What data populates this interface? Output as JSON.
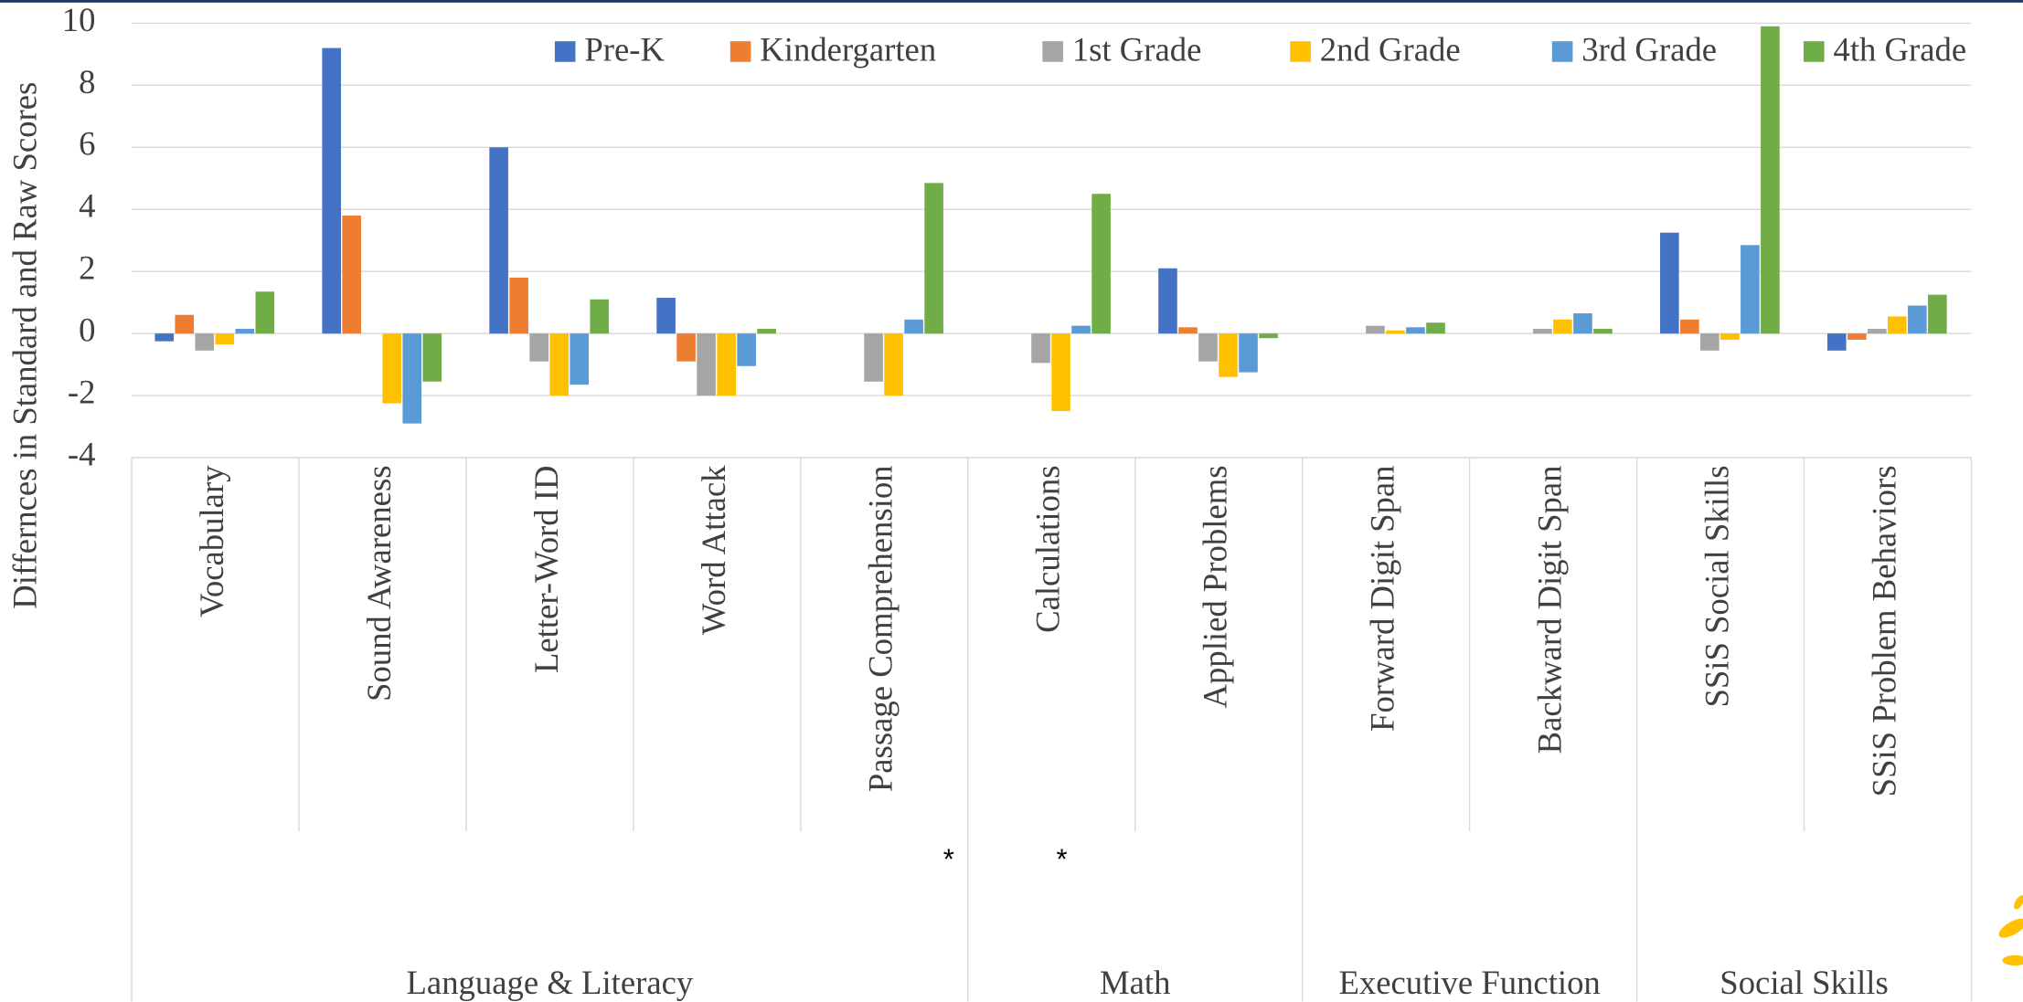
{
  "chart_data": {
    "type": "bar",
    "ylabel": "Differnces in Standard and Raw Scores",
    "categories": [
      "Vocabulary",
      "Sound Awareness",
      "Letter-Word ID",
      "Word Attack",
      "Passage Comprehension",
      "Calculations",
      "Applied Problems",
      "Forward Digit Span",
      "Backward Digit Span",
      "SSiS Social Skills",
      "SSiS Problem Behaviors"
    ],
    "category_notes": [
      null,
      null,
      null,
      null,
      "*",
      "*",
      null,
      null,
      null,
      null,
      null
    ],
    "groups": [
      {
        "label": "Language & Literacy",
        "span": 5
      },
      {
        "label": "Math",
        "span": 2
      },
      {
        "label": "Executive Function",
        "span": 2
      },
      {
        "label": "Social Skills",
        "span": 2
      }
    ],
    "series": [
      {
        "name": "Pre-K",
        "color": "#4472c4",
        "values": [
          -0.25,
          9.2,
          6.0,
          1.15,
          null,
          null,
          2.1,
          null,
          null,
          3.25,
          -0.55
        ]
      },
      {
        "name": "Kindergarten",
        "color": "#ed7d31",
        "values": [
          0.6,
          3.8,
          1.8,
          -0.9,
          null,
          null,
          0.2,
          null,
          null,
          0.45,
          -0.2
        ]
      },
      {
        "name": "1st Grade",
        "color": "#a5a5a5",
        "values": [
          -0.55,
          null,
          -0.9,
          -2.0,
          -1.55,
          -0.95,
          -0.9,
          0.25,
          0.15,
          -0.55,
          0.15
        ]
      },
      {
        "name": "2nd Grade",
        "color": "#ffc000",
        "values": [
          -0.35,
          -2.25,
          -2.0,
          -2.0,
          -2.0,
          -2.5,
          -1.4,
          0.1,
          0.45,
          -0.2,
          0.55
        ]
      },
      {
        "name": "3rd Grade",
        "color": "#5b9bd5",
        "values": [
          0.15,
          -2.9,
          -1.65,
          -1.05,
          0.45,
          0.25,
          -1.25,
          0.2,
          0.65,
          2.85,
          0.9
        ]
      },
      {
        "name": "4th Grade",
        "color": "#70ad47",
        "values": [
          1.35,
          -1.55,
          1.1,
          0.15,
          4.85,
          4.5,
          -0.15,
          0.35,
          0.15,
          9.9,
          1.25
        ]
      }
    ],
    "ylim": [
      -4,
      10
    ],
    "yticks": [
      -4,
      -2,
      0,
      2,
      4,
      6,
      8,
      10
    ],
    "grid": true,
    "legend": "top"
  }
}
